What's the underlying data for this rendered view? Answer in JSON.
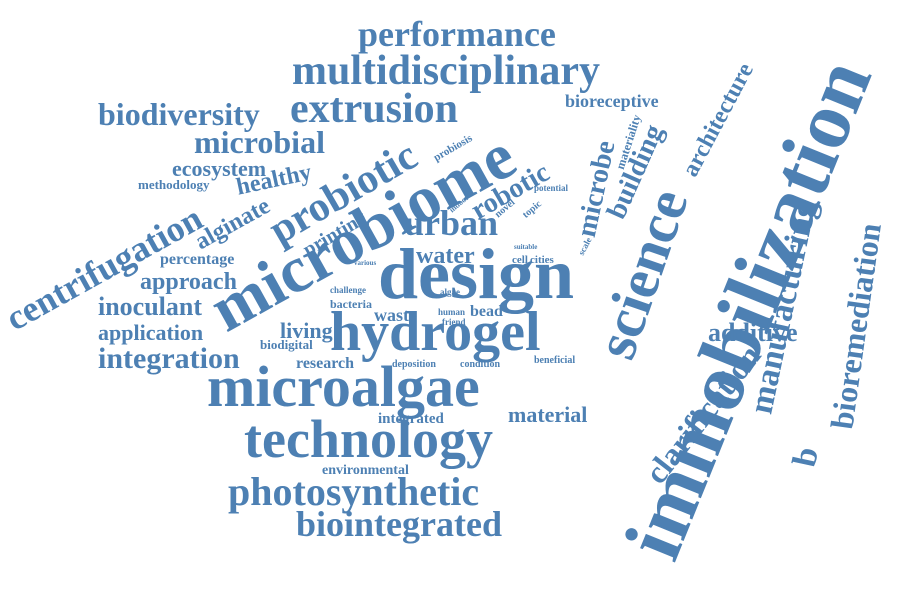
{
  "color": "#4d80b3",
  "words": {
    "immobilization": "immobilization",
    "microbiome": "microbiome",
    "design": "design",
    "hydrogel": "hydrogel",
    "microalgae": "microalgae",
    "technology": "technology",
    "science": "science",
    "extrusion": "extrusion",
    "multidisciplinary": "multidisciplinary",
    "performance": "performance",
    "photosynthetic": "photosynthetic",
    "biointegrated": "biointegrated",
    "manufacturing": "manufacturing",
    "bioremediation": "bioremediation",
    "centrifugation": "centrifugation",
    "probiotic": "probiotic",
    "biodiversity": "biodiversity",
    "microbial": "microbial",
    "urban": "urban",
    "microbe": "microbe",
    "robotic": "robotic",
    "building": "building",
    "architecture": "architecture",
    "clarification": "clarification",
    "additive": "additive",
    "alginate": "alginate",
    "healthy": "healthy",
    "printing": "printing",
    "ecosystem": "ecosystem",
    "methodology": "methodology",
    "approach": "approach",
    "percentage": "percentage",
    "inoculant": "inoculant",
    "application": "application",
    "integration": "integration",
    "living": "living",
    "biodigital": "biodigital",
    "water": "water",
    "research": "research",
    "deposition": "deposition",
    "condition": "condition",
    "beneficial": "beneficial",
    "integrated": "integrated",
    "material": "material",
    "environmental": "environmental",
    "waste": "waste",
    "bead": "bead",
    "human": "human",
    "friend": "friend",
    "bacteria": "bacteria",
    "challenge": "challenge",
    "algae": "algae",
    "various": "various",
    "cell": "cell",
    "cities": "cities",
    "suitable": "suitable",
    "scale": "scale",
    "topic": "topic",
    "novel": "novel",
    "potential": "potential",
    "indoor": "indoor",
    "probiosis": "probiosis",
    "materiality": "materiality",
    "bioreceptive": "bioreceptive",
    "b": "b"
  }
}
